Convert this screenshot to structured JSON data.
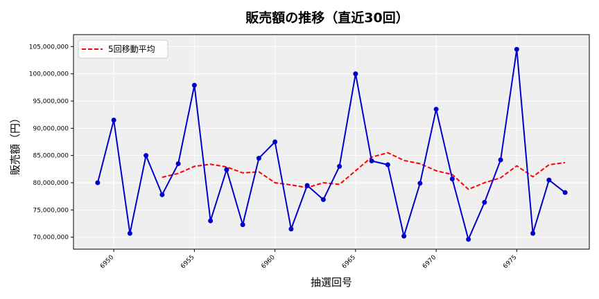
{
  "chart_data": {
    "type": "line",
    "title": "販売額の推移（直近30回）",
    "xlabel": "抽選回号",
    "ylabel": "販売額（円）",
    "xlim": [
      6947.5,
      6979.5
    ],
    "ylim": [
      67800000,
      107200000
    ],
    "xticks": [
      6950,
      6955,
      6960,
      6965,
      6970,
      6975
    ],
    "yticks": [
      70000000,
      75000000,
      80000000,
      85000000,
      90000000,
      95000000,
      100000000,
      105000000
    ],
    "ytick_labels": [
      "70,000,000",
      "75,000,000",
      "80,000,000",
      "85,000,000",
      "90,000,000",
      "95,000,000",
      "100,000,000",
      "105,000,000"
    ],
    "grid": true,
    "legend_position": "top-left",
    "x": [
      6949,
      6950,
      6951,
      6952,
      6953,
      6954,
      6955,
      6956,
      6957,
      6958,
      6959,
      6960,
      6961,
      6962,
      6963,
      6964,
      6965,
      6966,
      6967,
      6968,
      6969,
      6970,
      6971,
      6972,
      6973,
      6974,
      6975,
      6976,
      6977,
      6978
    ],
    "series": [
      {
        "color": "#0000cc",
        "style": "solid-with-markers",
        "values": [
          80000000,
          91500000,
          70700000,
          85000000,
          77800000,
          83500000,
          97900000,
          73000000,
          82400000,
          72300000,
          84500000,
          87500000,
          71500000,
          79500000,
          76900000,
          83000000,
          100000000,
          84000000,
          83300000,
          70200000,
          79900000,
          93500000,
          80700000,
          69600000,
          76400000,
          84200000,
          104500000,
          70700000,
          80500000,
          78200000
        ]
      },
      {
        "name": "5回移動平均",
        "color": "#ff0000",
        "style": "dashed",
        "values": [
          null,
          null,
          null,
          null,
          81000000,
          81700000,
          83000000,
          83400000,
          82900000,
          81800000,
          82000000,
          80000000,
          79600000,
          79100000,
          80000000,
          79700000,
          82200000,
          84700000,
          85500000,
          84100000,
          83500000,
          82200000,
          81500000,
          78800000,
          80000000,
          80900000,
          83100000,
          81100000,
          83300000,
          83700000
        ]
      }
    ]
  }
}
